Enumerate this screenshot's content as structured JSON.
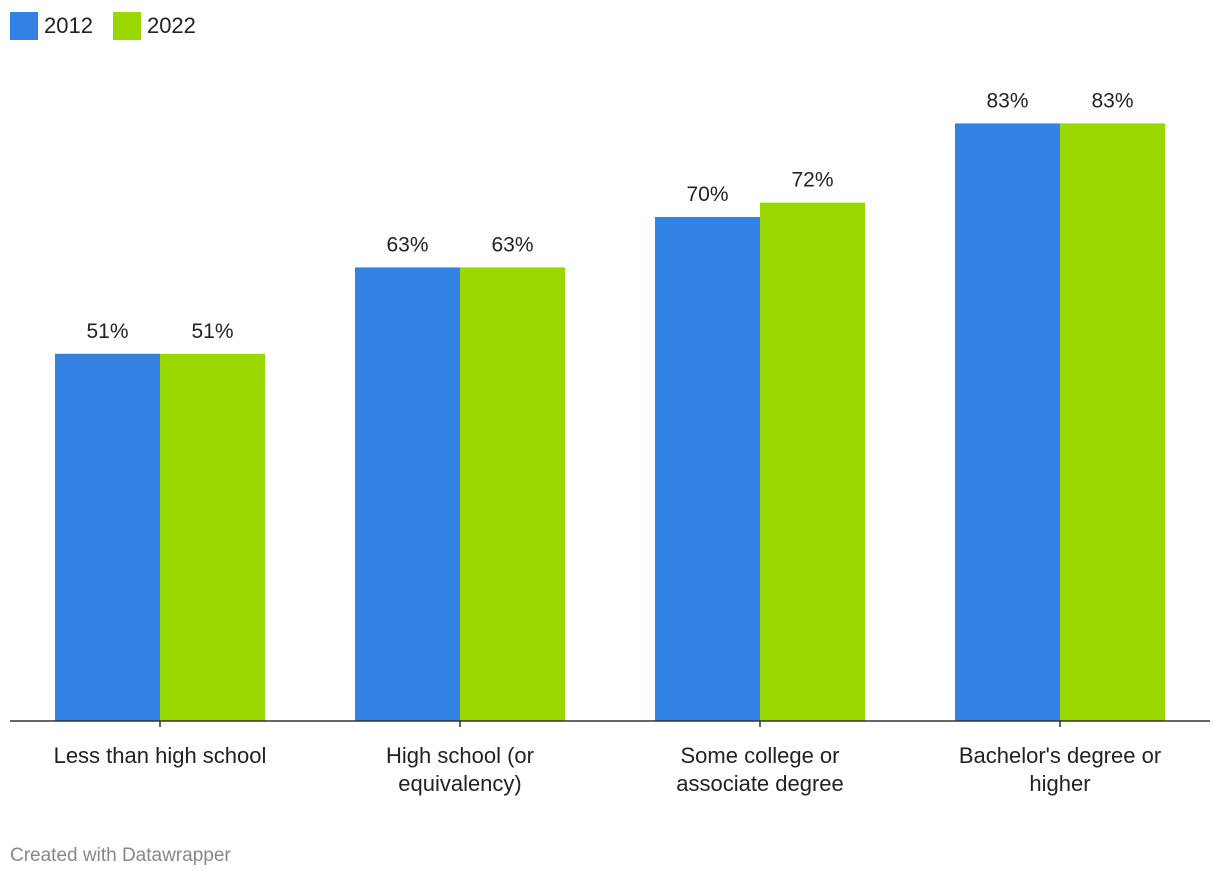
{
  "chart_data": {
    "type": "bar",
    "categories": [
      [
        "Less than high school"
      ],
      [
        "High school (or",
        "equivalency)"
      ],
      [
        "Some college or",
        "associate degree"
      ],
      [
        "Bachelor's degree or",
        "higher"
      ]
    ],
    "series": [
      {
        "name": "2012",
        "color": "#3182e2",
        "values": [
          51,
          63,
          70,
          83
        ]
      },
      {
        "name": "2022",
        "color": "#99d700",
        "values": [
          51,
          63,
          72,
          83
        ]
      }
    ],
    "value_suffix": "%",
    "ylim": [
      0,
      100
    ],
    "legend_position": "top-left",
    "grid": false
  },
  "footer": {
    "credit": "Created with Datawrapper"
  }
}
